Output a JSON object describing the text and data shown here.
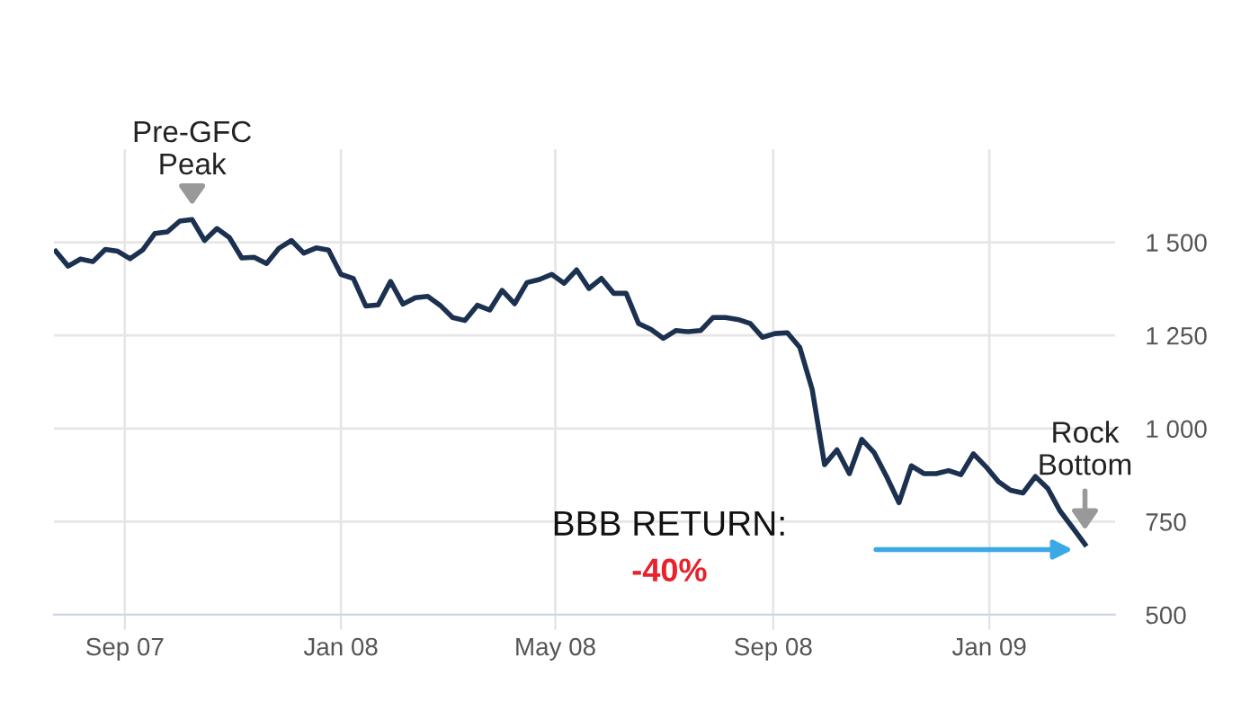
{
  "chart_data": {
    "type": "line",
    "x": [
      "2007-07-24",
      "2007-07-31",
      "2007-08-07",
      "2007-08-14",
      "2007-08-21",
      "2007-08-28",
      "2007-09-04",
      "2007-09-11",
      "2007-09-18",
      "2007-09-25",
      "2007-10-02",
      "2007-10-09",
      "2007-10-16",
      "2007-10-23",
      "2007-10-30",
      "2007-11-06",
      "2007-11-13",
      "2007-11-20",
      "2007-11-27",
      "2007-12-04",
      "2007-12-11",
      "2007-12-18",
      "2007-12-25",
      "2008-01-01",
      "2008-01-08",
      "2008-01-15",
      "2008-01-22",
      "2008-01-29",
      "2008-02-05",
      "2008-02-12",
      "2008-02-19",
      "2008-02-26",
      "2008-03-04",
      "2008-03-11",
      "2008-03-18",
      "2008-03-25",
      "2008-04-01",
      "2008-04-08",
      "2008-04-15",
      "2008-04-22",
      "2008-04-29",
      "2008-05-06",
      "2008-05-13",
      "2008-05-20",
      "2008-05-27",
      "2008-06-03",
      "2008-06-10",
      "2008-06-17",
      "2008-06-24",
      "2008-07-01",
      "2008-07-08",
      "2008-07-15",
      "2008-07-22",
      "2008-07-29",
      "2008-08-05",
      "2008-08-12",
      "2008-08-19",
      "2008-08-26",
      "2008-09-02",
      "2008-09-09",
      "2008-09-16",
      "2008-09-23",
      "2008-09-30",
      "2008-10-07",
      "2008-10-14",
      "2008-10-21",
      "2008-10-28",
      "2008-11-04",
      "2008-11-11",
      "2008-11-18",
      "2008-11-25",
      "2008-12-02",
      "2008-12-09",
      "2008-12-16",
      "2008-12-23",
      "2008-12-30",
      "2009-01-06",
      "2009-01-13",
      "2009-01-20",
      "2009-01-27",
      "2009-02-03",
      "2009-02-10",
      "2009-02-17",
      "2009-02-24"
    ],
    "series": [
      {
        "color": "#1c3150",
        "values": [
          1476,
          1436,
          1455,
          1448,
          1481,
          1476,
          1456,
          1479,
          1524,
          1528,
          1557,
          1561,
          1505,
          1537,
          1513,
          1458,
          1460,
          1443,
          1484,
          1505,
          1471,
          1485,
          1479,
          1414,
          1403,
          1329,
          1332,
          1395,
          1334,
          1351,
          1355,
          1331,
          1298,
          1290,
          1331,
          1318,
          1371,
          1335,
          1392,
          1400,
          1414,
          1390,
          1426,
          1376,
          1403,
          1363,
          1363,
          1282,
          1266,
          1242,
          1263,
          1260,
          1263,
          1298,
          1298,
          1293,
          1282,
          1245,
          1255,
          1257,
          1218,
          1105,
          903,
          943,
          879,
          971,
          935,
          871,
          801,
          900,
          879,
          879,
          887,
          876,
          932,
          898,
          858,
          834,
          827,
          871,
          839,
          778,
          734,
          689
        ]
      }
    ],
    "xlim": [
      "2007-07-23",
      "2009-03-13"
    ],
    "xticks": [
      {
        "value": "2007-09-01",
        "label": "Sep 07"
      },
      {
        "value": "2008-01-01",
        "label": "Jan 08"
      },
      {
        "value": "2008-05-01",
        "label": "May 08"
      },
      {
        "value": "2008-09-01",
        "label": "Sep 08"
      },
      {
        "value": "2009-01-01",
        "label": "Jan 09"
      }
    ],
    "ylim": [
      500,
      1750
    ],
    "yticks": [
      500,
      750,
      {
        "value": 1000,
        "label": "1 000"
      },
      {
        "value": 1250,
        "label": "1 250"
      },
      {
        "value": 1500,
        "label": "1 500"
      }
    ],
    "grid": true,
    "line_style": "solid",
    "marker": "none",
    "annotations": [
      {
        "text": "Pre-GFC\nPeak",
        "x": "2007-10-09",
        "y": 1561
      },
      {
        "text": "Rock\nBottom",
        "x": "2009-02-24",
        "y": 689
      },
      "BBB RETURN:",
      "-40%"
    ]
  }
}
